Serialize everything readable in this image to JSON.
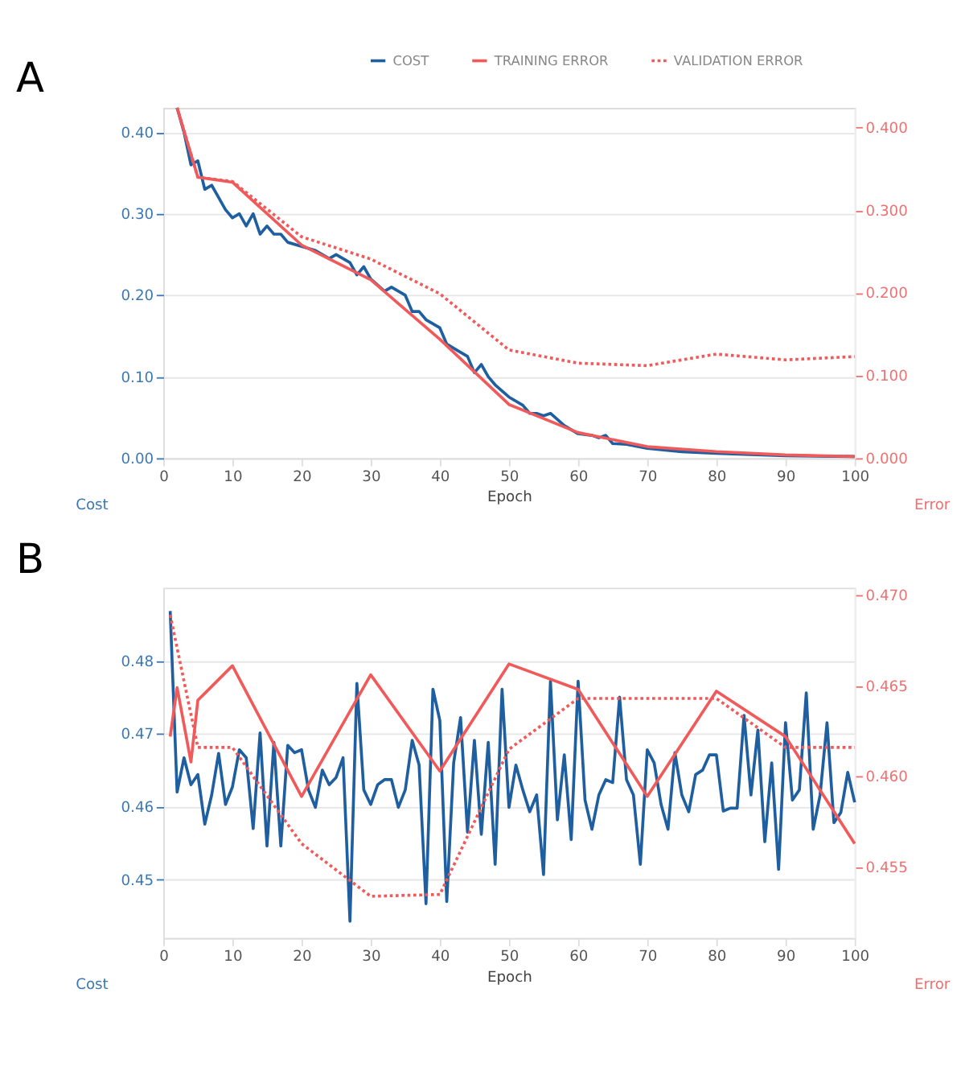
{
  "chart_data": [
    {
      "type": "line",
      "title": "A",
      "xlabel": "Epoch",
      "ylabel": "Cost",
      "y2label": "Error",
      "legend": "top right",
      "grid": "y",
      "xlim": [
        0,
        100
      ],
      "xticks": [
        0,
        10,
        20,
        30,
        40,
        50,
        60,
        70,
        80,
        90,
        100
      ],
      "ylim": [
        0,
        0.43
      ],
      "yticks": [
        {
          "value": 0,
          "label": "0.00"
        },
        {
          "value": 0.1,
          "label": "0.10"
        },
        {
          "value": 0.2,
          "label": "0.20"
        },
        {
          "value": 0.3,
          "label": "0.30"
        },
        {
          "value": 0.4,
          "label": "0.40"
        }
      ],
      "y2lim": [
        0,
        0.424
      ],
      "y2ticks": [
        {
          "value": 0,
          "label": "0.000"
        },
        {
          "value": 0.1,
          "label": "0.100"
        },
        {
          "value": 0.2,
          "label": "0.200"
        },
        {
          "value": 0.3,
          "label": "0.300"
        },
        {
          "value": 0.4,
          "label": "0.400"
        }
      ],
      "series": [
        {
          "name": "COST",
          "color": "#1f5fa0",
          "line_style": "solid",
          "x": [
            2,
            3,
            4,
            5,
            6,
            7,
            8,
            9,
            10,
            11,
            12,
            13,
            14,
            15,
            16,
            17,
            18,
            20,
            22,
            24,
            25,
            27,
            28,
            29,
            30,
            32,
            33,
            34,
            35,
            36,
            37,
            38,
            39,
            40,
            41,
            43,
            44,
            45,
            46,
            47,
            48,
            50,
            52,
            53,
            54,
            55,
            56,
            58,
            60,
            62,
            63,
            64,
            65,
            67,
            70,
            75,
            80,
            90,
            100
          ],
          "values": [
            0.43,
            0.4,
            0.36,
            0.365,
            0.33,
            0.335,
            0.32,
            0.305,
            0.295,
            0.3,
            0.285,
            0.3,
            0.275,
            0.285,
            0.275,
            0.275,
            0.265,
            0.26,
            0.255,
            0.245,
            0.25,
            0.24,
            0.225,
            0.235,
            0.22,
            0.205,
            0.21,
            0.205,
            0.2,
            0.18,
            0.18,
            0.17,
            0.165,
            0.16,
            0.14,
            0.13,
            0.125,
            0.105,
            0.115,
            0.1,
            0.09,
            0.075,
            0.065,
            0.055,
            0.055,
            0.052,
            0.055,
            0.04,
            0.03,
            0.028,
            0.025,
            0.028,
            0.018,
            0.017,
            0.012,
            0.008,
            0.006,
            0.003,
            0.002
          ]
        },
        {
          "name": "TRAINING ERROR",
          "color": "#f05a5a",
          "line_style": "solid",
          "axis": "y2",
          "x": [
            2,
            5,
            10,
            20,
            30,
            40,
            50,
            60,
            70,
            80,
            90,
            100
          ],
          "values": [
            0.424,
            0.34,
            0.334,
            0.258,
            0.216,
            0.144,
            0.065,
            0.031,
            0.014,
            0.008,
            0.004,
            0.002
          ]
        },
        {
          "name": "VALIDATION ERROR",
          "color": "#f05a5a",
          "line_style": "dotted",
          "axis": "y2",
          "x": [
            2,
            5,
            10,
            20,
            30,
            40,
            50,
            60,
            70,
            80,
            90,
            100
          ],
          "values": [
            0.424,
            0.34,
            0.335,
            0.268,
            0.241,
            0.199,
            0.131,
            0.115,
            0.112,
            0.126,
            0.119,
            0.123
          ]
        }
      ]
    },
    {
      "type": "line",
      "title": "B",
      "xlabel": "Epoch",
      "ylabel": "Cost",
      "y2label": "Error",
      "legend": "top right",
      "grid": "y",
      "xlim": [
        0,
        100
      ],
      "xticks": [
        0,
        10,
        20,
        30,
        40,
        50,
        60,
        70,
        80,
        90,
        100
      ],
      "ylim": [
        0.442,
        0.49
      ],
      "yticks": [
        0.45,
        0.46,
        0.47,
        0.48
      ],
      "y2lim": [
        0.4511,
        0.4704
      ],
      "y2ticks": [
        0.455,
        {
          "value": 0.46,
          "label": "0.460"
        },
        0.465,
        {
          "value": 0.47,
          "label": "0.470"
        }
      ],
      "series": [
        {
          "name": "COST",
          "color": "#1f5fa0",
          "line_style": "solid",
          "x": [
            1,
            2,
            3,
            4,
            5,
            6,
            7,
            8,
            9,
            10,
            11,
            12,
            13,
            14,
            15,
            16,
            17,
            18,
            19,
            20,
            21,
            22,
            23,
            24,
            25,
            26,
            27,
            28,
            29,
            30,
            31,
            32,
            33,
            34,
            35,
            36,
            37,
            38,
            39,
            40,
            41,
            42,
            43,
            44,
            45,
            46,
            47,
            48,
            49,
            50,
            51,
            52,
            53,
            54,
            55,
            56,
            57,
            58,
            59,
            60,
            61,
            62,
            63,
            64,
            65,
            66,
            67,
            68,
            69,
            70,
            71,
            72,
            73,
            74,
            75,
            76,
            77,
            78,
            79,
            80,
            81,
            82,
            83,
            84,
            85,
            86,
            87,
            88,
            89,
            90,
            91,
            92,
            93,
            94,
            95,
            96,
            97,
            98,
            99,
            100
          ],
          "values": [
            0.4868,
            0.462,
            0.4667,
            0.463,
            0.4644,
            0.4576,
            0.4616,
            0.4673,
            0.4603,
            0.4627,
            0.4678,
            0.4667,
            0.457,
            0.4701,
            0.4546,
            0.4688,
            0.4546,
            0.4684,
            0.4674,
            0.4678,
            0.4623,
            0.4599,
            0.465,
            0.463,
            0.464,
            0.4667,
            0.4443,
            0.4769,
            0.4623,
            0.4603,
            0.463,
            0.4637,
            0.4637,
            0.4599,
            0.4623,
            0.4691,
            0.4657,
            0.4467,
            0.4761,
            0.4718,
            0.447,
            0.466,
            0.4722,
            0.4565,
            0.4691,
            0.4562,
            0.4688,
            0.4521,
            0.4761,
            0.4599,
            0.4657,
            0.4623,
            0.4593,
            0.4616,
            0.4507,
            0.4772,
            0.4582,
            0.4671,
            0.4555,
            0.4772,
            0.4609,
            0.4569,
            0.4616,
            0.4637,
            0.4633,
            0.475,
            0.4637,
            0.4616,
            0.4521,
            0.4678,
            0.466,
            0.4603,
            0.4569,
            0.4674,
            0.4616,
            0.4593,
            0.4644,
            0.465,
            0.4671,
            0.4671,
            0.4594,
            0.4598,
            0.4598,
            0.4725,
            0.4616,
            0.4705,
            0.4552,
            0.466,
            0.4514,
            0.4715,
            0.4609,
            0.4623,
            0.4756,
            0.4569,
            0.4616,
            0.4715,
            0.4578,
            0.4592,
            0.4647,
            0.4606
          ]
        },
        {
          "name": "TRAINING ERROR",
          "color": "#f05a5a",
          "line_style": "solid",
          "axis": "y2",
          "x": [
            1,
            2,
            4,
            5,
            10,
            20,
            30,
            40,
            50,
            60,
            70,
            80,
            90,
            100
          ],
          "values": [
            0.4622,
            0.4649,
            0.4608,
            0.4642,
            0.4661,
            0.4589,
            0.4656,
            0.4603,
            0.4662,
            0.4648,
            0.4589,
            0.4647,
            0.4622,
            0.4563
          ]
        },
        {
          "name": "VALIDATION ERROR",
          "color": "#f05a5a",
          "line_style": "dotted",
          "axis": "y2",
          "x": [
            1,
            5,
            10,
            20,
            30,
            40,
            50,
            60,
            70,
            80,
            90,
            100
          ],
          "values": [
            0.4689,
            0.4616,
            0.4616,
            0.4563,
            0.4534,
            0.4535,
            0.4615,
            0.4643,
            0.4643,
            0.4643,
            0.4616,
            0.4616
          ]
        }
      ]
    }
  ]
}
